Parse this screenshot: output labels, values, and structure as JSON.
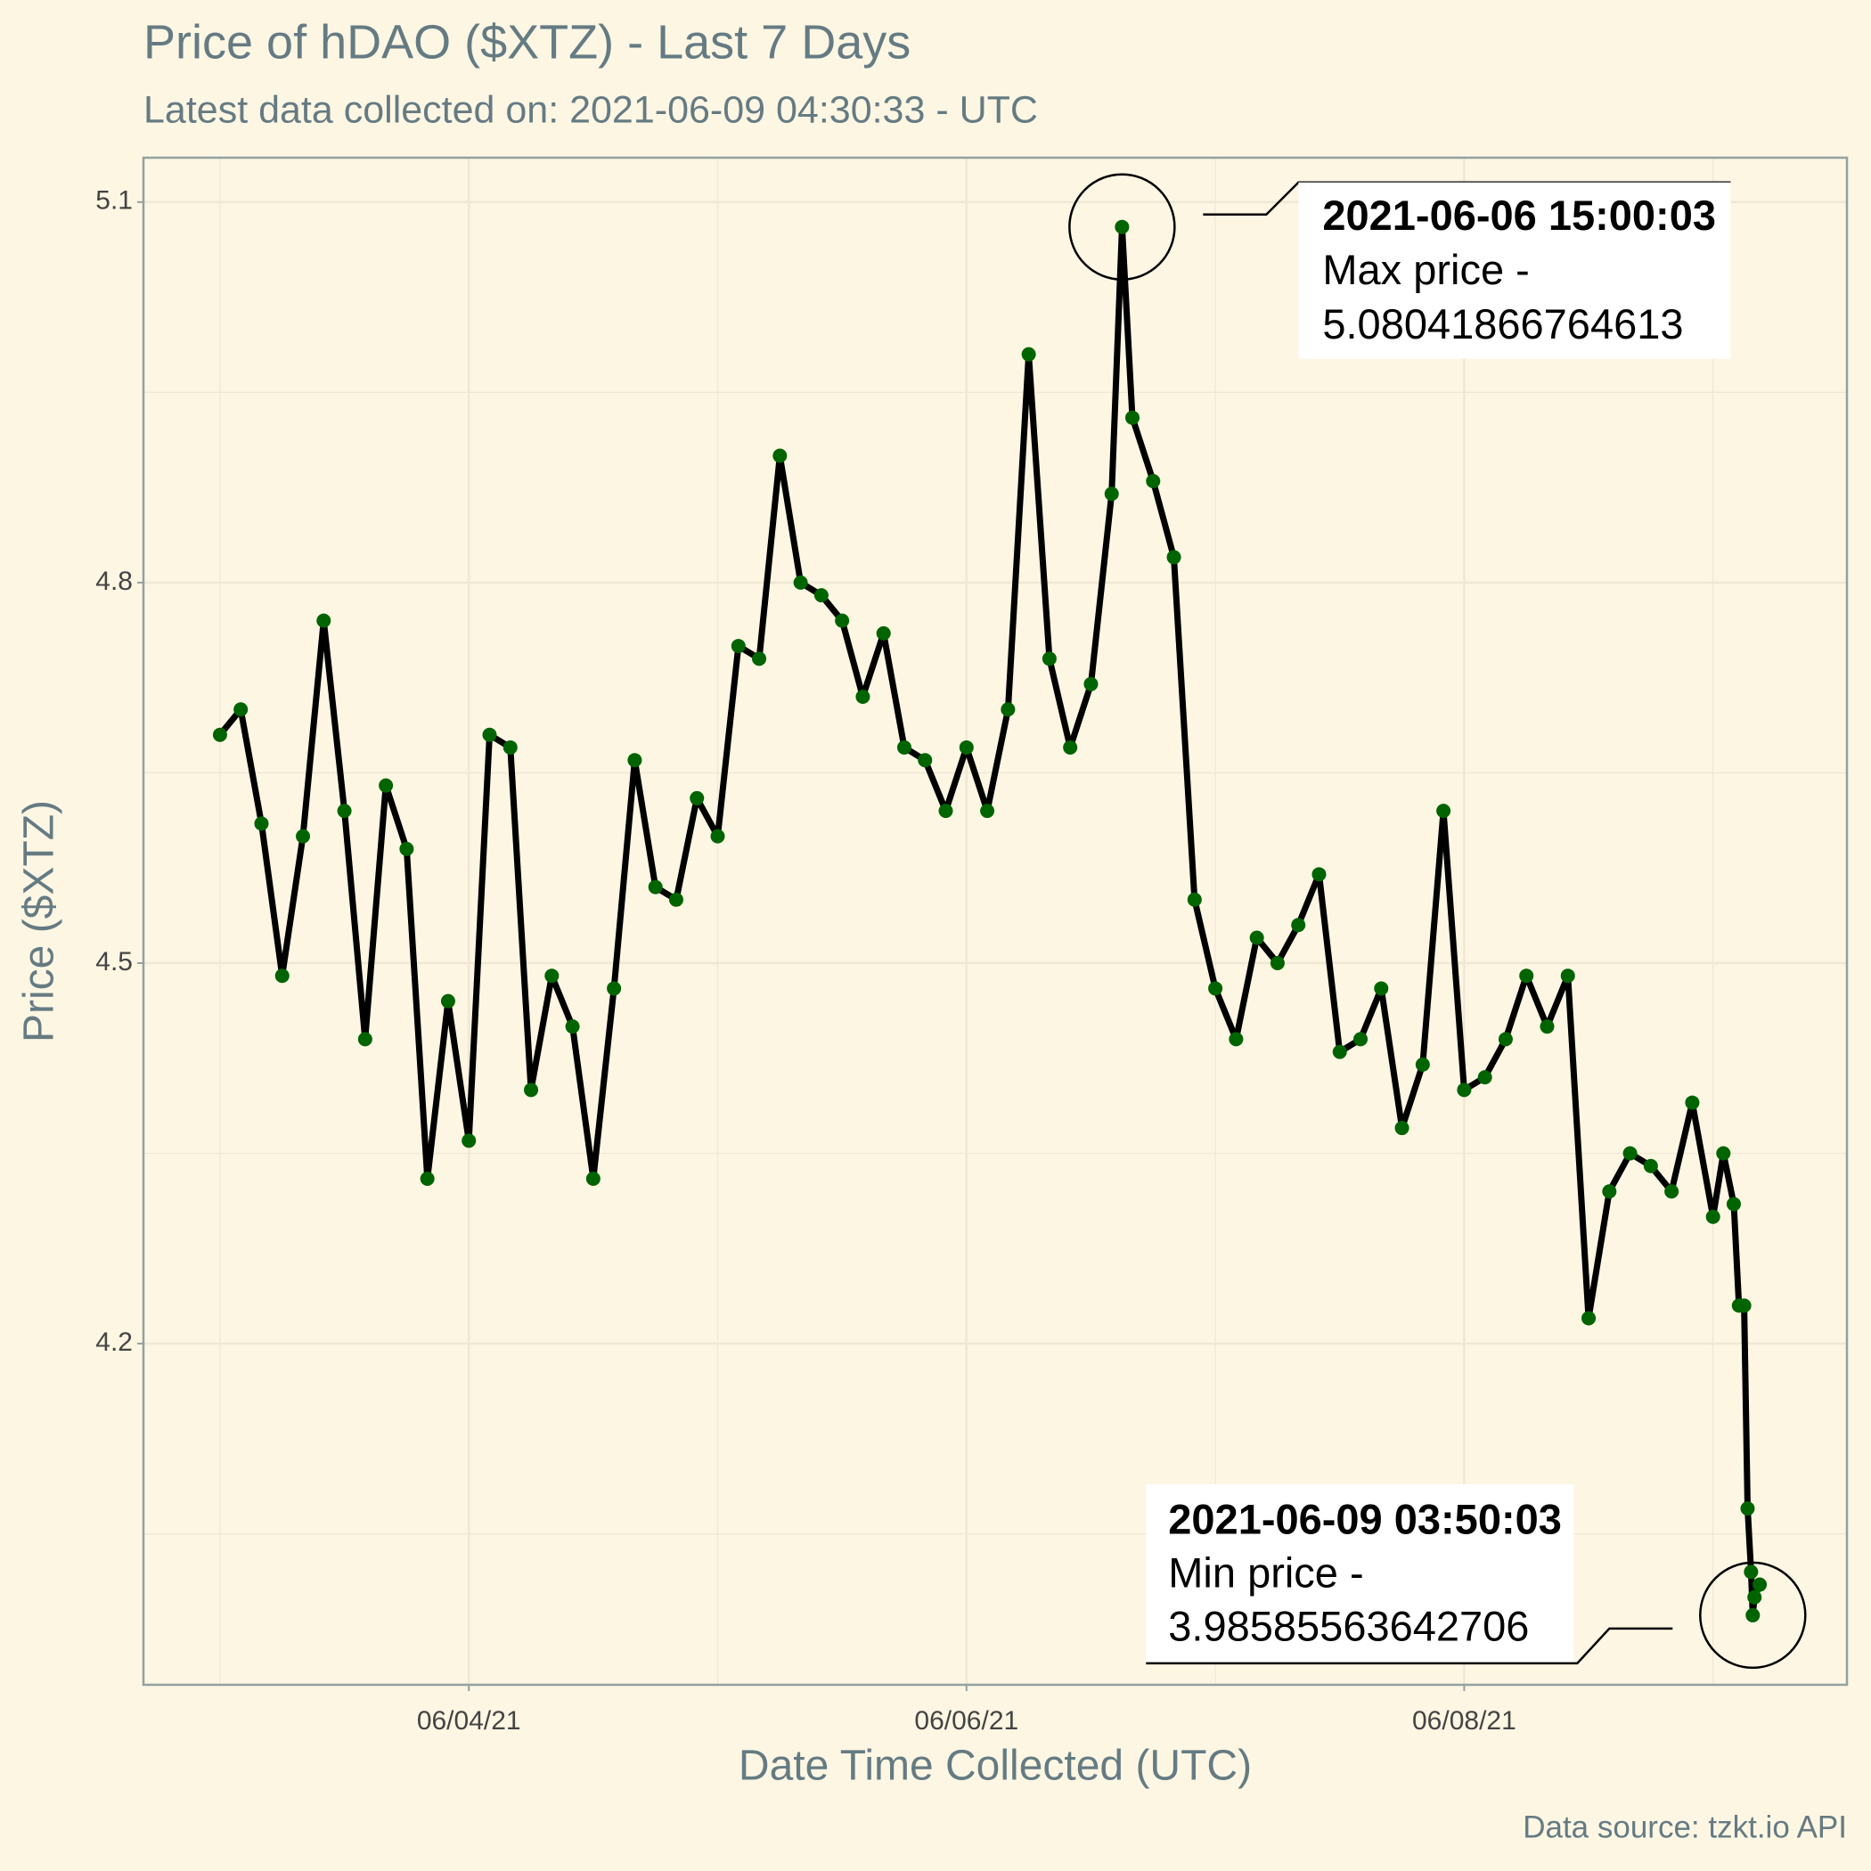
{
  "chart_data": {
    "type": "line",
    "title": "Price of hDAO ($XTZ) - Last 7 Days",
    "subtitle": "Latest data collected on: 2021-06-09 04:30:33  - UTC",
    "x_label": "Date Time Collected (UTC)",
    "y_label": "Price ($XTZ)",
    "caption": "Data source: tzkt.io API",
    "xlim": [
      "2021-06-02 16:37",
      "2021-06-09 12:55"
    ],
    "ylim": [
      3.931,
      5.135
    ],
    "xticks": [
      {
        "value": "2021-06-04",
        "label": "06/04/21"
      },
      {
        "value": "2021-06-06",
        "label": "06/06/21"
      },
      {
        "value": "2021-06-08",
        "label": "06/08/21"
      }
    ],
    "xminor": [
      "2021-06-03",
      "2021-06-05",
      "2021-06-07",
      "2021-06-09"
    ],
    "yticks": [
      4.2,
      4.5,
      4.8,
      5.1
    ],
    "yminor": [
      4.05,
      4.35,
      4.65,
      4.95
    ],
    "grid": true,
    "series": [
      {
        "name": "hDAO",
        "color": "#000000",
        "point_color": "#006400",
        "x": [
          "2021-06-03 00:00",
          "2021-06-03 02:00",
          "2021-06-03 04:00",
          "2021-06-03 06:00",
          "2021-06-03 08:00",
          "2021-06-03 10:00",
          "2021-06-03 12:00",
          "2021-06-03 14:00",
          "2021-06-03 16:00",
          "2021-06-03 18:00",
          "2021-06-03 20:00",
          "2021-06-03 22:00",
          "2021-06-04 00:00",
          "2021-06-04 02:00",
          "2021-06-04 04:00",
          "2021-06-04 06:00",
          "2021-06-04 08:00",
          "2021-06-04 10:00",
          "2021-06-04 12:00",
          "2021-06-04 14:00",
          "2021-06-04 16:00",
          "2021-06-04 18:00",
          "2021-06-04 20:00",
          "2021-06-04 22:00",
          "2021-06-05 00:00",
          "2021-06-05 02:00",
          "2021-06-05 04:00",
          "2021-06-05 06:00",
          "2021-06-05 08:00",
          "2021-06-05 10:00",
          "2021-06-05 12:00",
          "2021-06-05 14:00",
          "2021-06-05 16:00",
          "2021-06-05 18:00",
          "2021-06-05 20:00",
          "2021-06-05 22:00",
          "2021-06-06 00:00",
          "2021-06-06 02:00",
          "2021-06-06 04:00",
          "2021-06-06 06:00",
          "2021-06-06 08:00",
          "2021-06-06 10:00",
          "2021-06-06 12:00",
          "2021-06-06 14:00",
          "2021-06-06 15:00",
          "2021-06-06 16:00",
          "2021-06-06 18:00",
          "2021-06-06 20:00",
          "2021-06-06 22:00",
          "2021-06-07 00:00",
          "2021-06-07 02:00",
          "2021-06-07 04:00",
          "2021-06-07 06:00",
          "2021-06-07 08:00",
          "2021-06-07 10:00",
          "2021-06-07 12:00",
          "2021-06-07 14:00",
          "2021-06-07 16:00",
          "2021-06-07 18:00",
          "2021-06-07 20:00",
          "2021-06-07 22:00",
          "2021-06-08 00:00",
          "2021-06-08 02:00",
          "2021-06-08 04:00",
          "2021-06-08 06:00",
          "2021-06-08 08:00",
          "2021-06-08 10:00",
          "2021-06-08 12:00",
          "2021-06-08 14:00",
          "2021-06-08 16:00",
          "2021-06-08 18:00",
          "2021-06-08 20:00",
          "2021-06-08 22:00",
          "2021-06-09 00:00",
          "2021-06-09 01:00",
          "2021-06-09 02:00",
          "2021-06-09 02:30",
          "2021-06-09 03:00",
          "2021-06-09 03:20",
          "2021-06-09 03:40",
          "2021-06-09 03:50",
          "2021-06-09 04:00",
          "2021-06-09 04:30"
        ],
        "values": [
          4.68,
          4.7,
          4.61,
          4.49,
          4.6,
          4.77,
          4.62,
          4.44,
          4.64,
          4.59,
          4.33,
          4.47,
          4.36,
          4.68,
          4.67,
          4.4,
          4.49,
          4.45,
          4.33,
          4.48,
          4.66,
          4.56,
          4.55,
          4.63,
          4.6,
          4.75,
          4.74,
          4.9,
          4.8,
          4.79,
          4.77,
          4.71,
          4.76,
          4.67,
          4.66,
          4.62,
          4.67,
          4.62,
          4.7,
          4.98,
          4.74,
          4.67,
          4.72,
          4.87,
          5.08041866764613,
          4.93,
          4.88,
          4.82,
          4.55,
          4.48,
          4.44,
          4.52,
          4.5,
          4.53,
          4.57,
          4.43,
          4.44,
          4.48,
          4.37,
          4.42,
          4.62,
          4.4,
          4.41,
          4.44,
          4.49,
          4.45,
          4.49,
          4.22,
          4.32,
          4.35,
          4.34,
          4.32,
          4.39,
          4.3,
          4.35,
          4.31,
          4.23,
          4.23,
          4.07,
          4.02,
          3.98585563642706,
          4.0,
          4.01
        ]
      }
    ],
    "annotations": [
      {
        "lines": [
          "2021-06-06 15:00:03",
          "Max price -",
          "5.08041866764613"
        ]
      },
      {
        "lines": [
          "2021-06-09 03:50:03",
          "Min price -",
          "3.98585563642706"
        ]
      }
    ]
  }
}
